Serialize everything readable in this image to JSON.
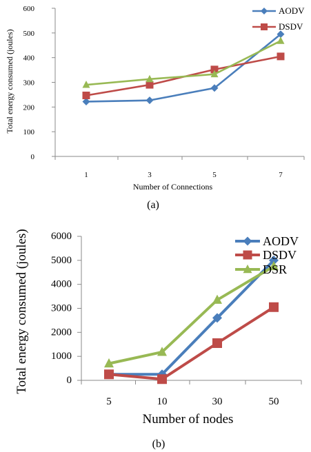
{
  "chart_data": [
    {
      "type": "line",
      "caption": "(a)",
      "categories": [
        "1",
        "3",
        "5",
        "7"
      ],
      "xlabel": "Number of Connections",
      "ylabel": "Total energy consumed (joules)",
      "ylim": [
        0,
        600
      ],
      "yticks": [
        "0",
        "100",
        "200",
        "300",
        "400",
        "500",
        "600"
      ],
      "grid": false,
      "legend_position": "top-right",
      "series": [
        {
          "name": "AODV",
          "color": "#4a7ebb",
          "marker": "diamond",
          "values": [
            222,
            227,
            277,
            495
          ]
        },
        {
          "name": "DSDV",
          "color": "#be4b48",
          "marker": "square",
          "values": [
            247,
            290,
            352,
            405
          ]
        },
        {
          "name": "",
          "color": "#98b954",
          "marker": "triangle",
          "values": [
            290,
            313,
            333,
            468
          ]
        }
      ]
    },
    {
      "type": "line",
      "caption": "(b)",
      "categories": [
        "5",
        "10",
        "30",
        "50"
      ],
      "xlabel": "Number of nodes",
      "ylabel": "Total energy consumed (joules)",
      "ylim": [
        0,
        6000
      ],
      "yticks": [
        "0",
        "1000",
        "2000",
        "3000",
        "4000",
        "5000",
        "6000"
      ],
      "grid": false,
      "legend_position": "top-right",
      "series": [
        {
          "name": "AODV",
          "color": "#4a7ebb",
          "marker": "diamond",
          "values": [
            250,
            250,
            2600,
            5000
          ]
        },
        {
          "name": "DSDV",
          "color": "#be4b48",
          "marker": "square",
          "values": [
            250,
            50,
            1550,
            3050
          ]
        },
        {
          "name": "DSR",
          "color": "#98b954",
          "marker": "triangle",
          "values": [
            700,
            1180,
            3350,
            4750
          ]
        }
      ]
    }
  ]
}
